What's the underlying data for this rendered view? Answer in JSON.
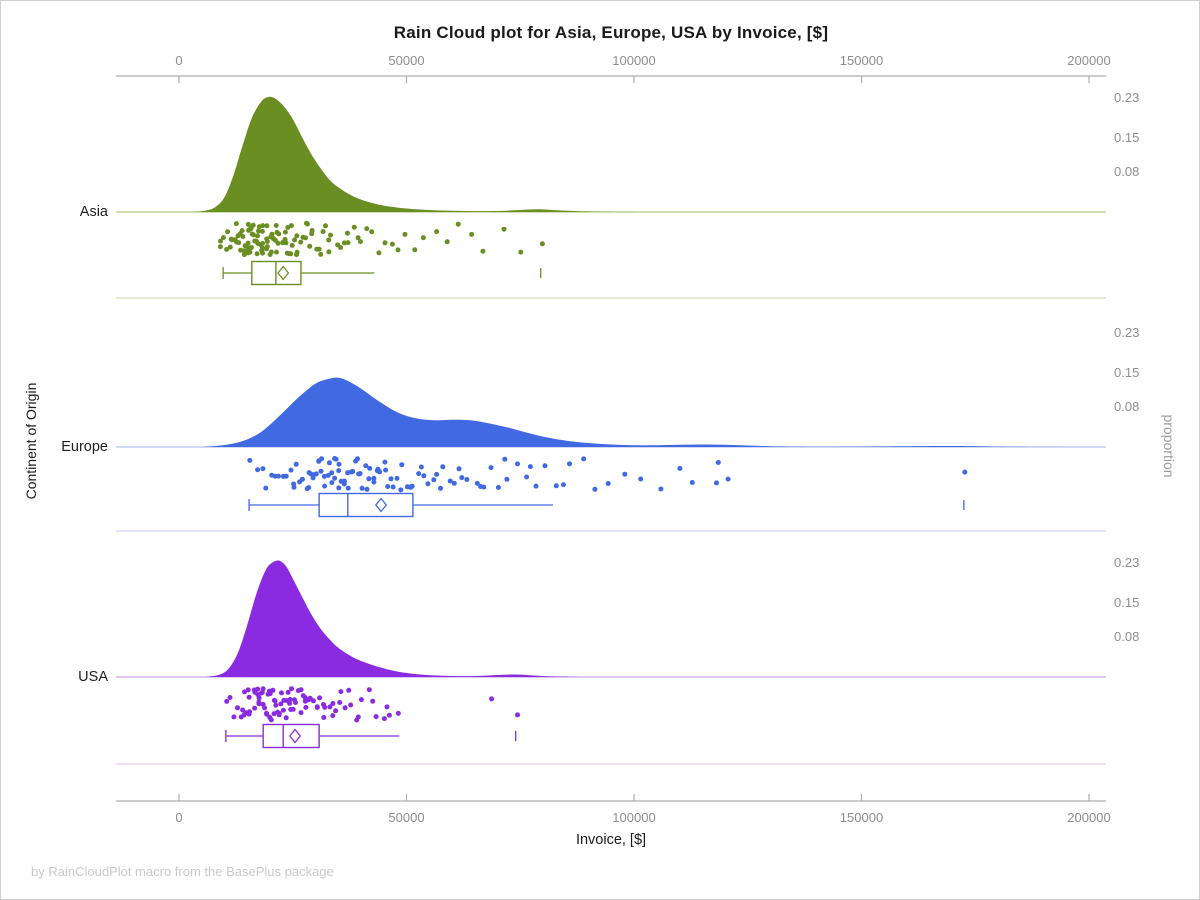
{
  "page": {
    "footer": "by RainCloudPlot macro from the BasePlus package"
  },
  "chart_data": {
    "type": "raincloud (half-density cloud + jittered rain points + box plot per category)",
    "title": "Rain Cloud plot for Asia, Europe, USA by Invoice, [$]",
    "xlabel": "Invoice, [$]",
    "ylabel_left": "Continent of Origin",
    "ylabel_right": "proportion",
    "xlim": [
      0,
      200000
    ],
    "x_ticks": [
      {
        "value": 0,
        "label": "0"
      },
      {
        "value": 50000,
        "label": "50000"
      },
      {
        "value": 100000,
        "label": "100000"
      },
      {
        "value": 150000,
        "label": "150000"
      },
      {
        "value": 200000,
        "label": "200000"
      }
    ],
    "proportion_ticks": [
      {
        "value": 0.23,
        "label": "0.23"
      },
      {
        "value": 0.15,
        "label": "0.15"
      },
      {
        "value": 0.08,
        "label": "0.08"
      }
    ],
    "categories": [
      "Asia",
      "Europe",
      "USA"
    ],
    "grid": false,
    "legend": "none",
    "groups": [
      {
        "name": "Asia",
        "color": "#6b8e23",
        "baseline_color": "#b7c98a",
        "separator_color": "#d2dcb6",
        "box": {
          "whisker_low": 9700,
          "q1": 16000,
          "median": 21300,
          "mean": 22900,
          "q3": 26800,
          "whisker_high": 42900,
          "outliers": [
            79500
          ]
        },
        "density": [
          [
            3000,
            0
          ],
          [
            6000,
            0.003
          ],
          [
            8000,
            0.01
          ],
          [
            10000,
            0.03
          ],
          [
            12000,
            0.075
          ],
          [
            14000,
            0.135
          ],
          [
            16000,
            0.19
          ],
          [
            18000,
            0.222
          ],
          [
            19500,
            0.232
          ],
          [
            21000,
            0.23
          ],
          [
            23000,
            0.214
          ],
          [
            25000,
            0.188
          ],
          [
            27000,
            0.152
          ],
          [
            29000,
            0.118
          ],
          [
            31000,
            0.09
          ],
          [
            33000,
            0.066
          ],
          [
            35000,
            0.05
          ],
          [
            38000,
            0.033
          ],
          [
            41000,
            0.022
          ],
          [
            45000,
            0.013
          ],
          [
            50000,
            0.007
          ],
          [
            55000,
            0.004
          ],
          [
            60000,
            0.0025
          ],
          [
            65000,
            0.0018
          ],
          [
            70000,
            0.002
          ],
          [
            75000,
            0.004
          ],
          [
            79000,
            0.0055
          ],
          [
            83000,
            0.0035
          ],
          [
            88000,
            0.0015
          ],
          [
            95000,
            0.0004
          ],
          [
            105000,
            0
          ],
          [
            200000,
            0
          ]
        ],
        "points": [
          8800,
          9400,
          9900,
          10300,
          10700,
          11100,
          11400,
          11700,
          12000,
          12300,
          12600,
          12900,
          13100,
          13300,
          13500,
          13700,
          13900,
          14100,
          14300,
          14500,
          14700,
          14900,
          15100,
          15200,
          15400,
          15600,
          15800,
          16000,
          16100,
          16300,
          16500,
          16700,
          16900,
          17100,
          17200,
          17400,
          17600,
          17800,
          18000,
          18200,
          18400,
          18600,
          18800,
          19000,
          19200,
          19400,
          19600,
          19800,
          20000,
          20200,
          20500,
          20700,
          21000,
          21200,
          21500,
          21800,
          22100,
          22400,
          22700,
          23000,
          23300,
          23600,
          23900,
          24200,
          24600,
          25000,
          25400,
          25800,
          26200,
          26600,
          27000,
          27500,
          28000,
          28500,
          29000,
          29600,
          30200,
          30800,
          31500,
          32200,
          32900,
          33700,
          34500,
          35300,
          36200,
          37100,
          38100,
          39100,
          40200,
          41400,
          42600,
          43900,
          45300,
          46800,
          48400,
          50100,
          52000,
          54000,
          56200,
          58600,
          61200,
          64000,
          67000,
          71000,
          75500,
          79500,
          15500,
          16600,
          17700,
          18500,
          19500,
          20900,
          22000,
          23500,
          24800,
          26400,
          28200,
          30500,
          33300,
          36600
        ]
      },
      {
        "name": "Europe",
        "color": "#4169e1",
        "baseline_color": "#b4c3ee",
        "separator_color": "#ced8f4",
        "box": {
          "whisker_low": 15400,
          "q1": 30800,
          "median": 37100,
          "mean": 44400,
          "q3": 51400,
          "whisker_high": 82200,
          "outliers": [
            172500
          ]
        },
        "density": [
          [
            5000,
            0
          ],
          [
            10000,
            0.004
          ],
          [
            14000,
            0.012
          ],
          [
            18000,
            0.03
          ],
          [
            22000,
            0.062
          ],
          [
            26000,
            0.098
          ],
          [
            30000,
            0.128
          ],
          [
            33000,
            0.138
          ],
          [
            35000,
            0.14
          ],
          [
            37000,
            0.134
          ],
          [
            40000,
            0.118
          ],
          [
            44000,
            0.092
          ],
          [
            48000,
            0.07
          ],
          [
            52000,
            0.058
          ],
          [
            56000,
            0.054
          ],
          [
            60000,
            0.055
          ],
          [
            64000,
            0.054
          ],
          [
            68000,
            0.048
          ],
          [
            72000,
            0.04
          ],
          [
            76000,
            0.03
          ],
          [
            80000,
            0.021
          ],
          [
            85000,
            0.013
          ],
          [
            90000,
            0.008
          ],
          [
            95000,
            0.005
          ],
          [
            100000,
            0.0035
          ],
          [
            105000,
            0.0035
          ],
          [
            110000,
            0.0045
          ],
          [
            115000,
            0.005
          ],
          [
            120000,
            0.0045
          ],
          [
            125000,
            0.003
          ],
          [
            130000,
            0.0015
          ],
          [
            138000,
            0.0006
          ],
          [
            148000,
            0.0008
          ],
          [
            158000,
            0.0014
          ],
          [
            168000,
            0.002
          ],
          [
            174000,
            0.0018
          ],
          [
            180000,
            0.0008
          ],
          [
            188000,
            0.0002
          ],
          [
            200000,
            0
          ]
        ],
        "points": [
          15400,
          16900,
          18100,
          19200,
          20200,
          21100,
          22000,
          22800,
          23500,
          24200,
          24900,
          25500,
          26100,
          26700,
          27300,
          27800,
          28300,
          28800,
          29300,
          29800,
          30300,
          30700,
          31100,
          31500,
          31900,
          32300,
          32700,
          33100,
          33500,
          33900,
          34300,
          34700,
          35100,
          35500,
          35900,
          36300,
          36700,
          37100,
          37500,
          37900,
          38300,
          38800,
          39300,
          39800,
          40300,
          40800,
          41300,
          41900,
          42500,
          43100,
          43700,
          44400,
          45100,
          45800,
          46500,
          47300,
          48100,
          48900,
          49800,
          50700,
          51600,
          52600,
          53600,
          54700,
          55800,
          57000,
          58200,
          59500,
          60800,
          62200,
          63700,
          65200,
          66800,
          68500,
          70300,
          72200,
          74200,
          76300,
          78500,
          80800,
          83200,
          85800,
          88500,
          91400,
          94500,
          97800,
          101500,
          105500,
          110000,
          113000,
          118000,
          118800,
          120500,
          172500,
          29500,
          31300,
          33300,
          35300,
          37300,
          39500,
          41600,
          43900,
          46200,
          48500,
          51100,
          54100,
          57600,
          61500,
          66000,
          71200,
          77400,
          84500
        ]
      },
      {
        "name": "USA",
        "color": "#8a2be2",
        "baseline_color": "#c9a4ea",
        "separator_color": "#e0cdf3",
        "box": {
          "whisker_low": 10300,
          "q1": 18500,
          "median": 22900,
          "mean": 25500,
          "q3": 30800,
          "whisker_high": 48400,
          "outliers": [
            74000
          ]
        },
        "density": [
          [
            6000,
            0
          ],
          [
            9000,
            0.005
          ],
          [
            11000,
            0.018
          ],
          [
            13000,
            0.05
          ],
          [
            15000,
            0.105
          ],
          [
            17000,
            0.168
          ],
          [
            19000,
            0.215
          ],
          [
            20500,
            0.231
          ],
          [
            22000,
            0.235
          ],
          [
            23500,
            0.224
          ],
          [
            25000,
            0.199
          ],
          [
            27000,
            0.163
          ],
          [
            29000,
            0.128
          ],
          [
            31000,
            0.099
          ],
          [
            33000,
            0.077
          ],
          [
            35000,
            0.059
          ],
          [
            38000,
            0.041
          ],
          [
            41000,
            0.029
          ],
          [
            44000,
            0.02
          ],
          [
            47000,
            0.013
          ],
          [
            50000,
            0.008
          ],
          [
            53000,
            0.005
          ],
          [
            56000,
            0.0032
          ],
          [
            60000,
            0.002
          ],
          [
            64000,
            0.0018
          ],
          [
            68000,
            0.003
          ],
          [
            72000,
            0.0048
          ],
          [
            75000,
            0.0048
          ],
          [
            78000,
            0.003
          ],
          [
            82000,
            0.0012
          ],
          [
            88000,
            0.0003
          ],
          [
            95000,
            0
          ],
          [
            200000,
            0
          ]
        ],
        "points": [
          10300,
          11300,
          12100,
          12700,
          13300,
          13800,
          14300,
          14700,
          15100,
          15500,
          15900,
          16200,
          16500,
          16800,
          17100,
          17400,
          17700,
          18000,
          18300,
          18600,
          18900,
          19200,
          19500,
          19800,
          20100,
          20400,
          20700,
          21000,
          21300,
          21600,
          21900,
          22200,
          22500,
          22800,
          23100,
          23500,
          23900,
          24300,
          24700,
          25100,
          25500,
          26000,
          26500,
          27000,
          27500,
          28100,
          28700,
          29300,
          30000,
          30700,
          31400,
          32200,
          33000,
          33900,
          34800,
          35800,
          36800,
          37900,
          39100,
          40400,
          41800,
          43300,
          44900,
          46600,
          48400,
          69000,
          74000,
          14500,
          15700,
          16900,
          17800,
          18700,
          19400,
          20200,
          20900,
          21700,
          22400,
          23300,
          24000,
          24900,
          25800,
          26800,
          27800,
          29000,
          30300,
          31800,
          33400,
          35300,
          37400,
          39700,
          42500,
          45700
        ]
      }
    ]
  },
  "style": {
    "axis_line_color": "#aeaeae",
    "tick_label_color": "#8d8d8d",
    "title_color": "#1a1a1a",
    "footer_color": "#c9c9c9",
    "background": "#ffffff",
    "border_color": "#cfcfcf"
  }
}
